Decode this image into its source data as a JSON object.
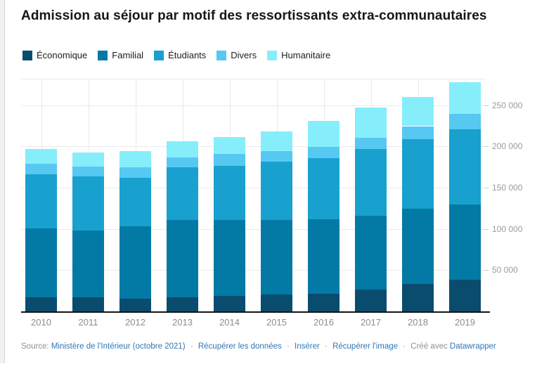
{
  "title": "Admission au séjour par motif des ressortissants extra-communautaires",
  "colors": {
    "economique": "#0a4c6d",
    "familial": "#0379a5",
    "etudiants": "#18a1ce",
    "divers": "#56c8f2",
    "humanitaire": "#86eefb",
    "grid": "#e9e9e9",
    "axis": "#141414",
    "tick_text": "#9b9b9b",
    "year_text": "#8d8d8d",
    "link": "#3077b5"
  },
  "chart_data": {
    "type": "bar",
    "stacked": true,
    "title": "Admission au séjour par motif des ressortissants extra-communautaires",
    "categories": [
      "2010",
      "2011",
      "2012",
      "2013",
      "2014",
      "2015",
      "2016",
      "2017",
      "2018",
      "2019"
    ],
    "series": [
      {
        "name": "Économique",
        "color": "#0a4c6d",
        "values": [
          17000,
          17000,
          15000,
          17000,
          19000,
          20500,
          21000,
          26500,
          33000,
          38500
        ]
      },
      {
        "name": "Familial",
        "color": "#0379a5",
        "values": [
          83500,
          81000,
          88000,
          94000,
          92000,
          90000,
          91000,
          89000,
          91500,
          91000
        ]
      },
      {
        "name": "Étudiants",
        "color": "#18a1ce",
        "values": [
          65500,
          65500,
          58500,
          63500,
          65500,
          71000,
          73500,
          81000,
          84000,
          91000
        ]
      },
      {
        "name": "Divers",
        "color": "#56c8f2",
        "values": [
          12500,
          12000,
          13000,
          12500,
          14000,
          12500,
          14000,
          14000,
          16000,
          19000
        ]
      },
      {
        "name": "Humanitaire",
        "color": "#86eefb",
        "values": [
          18500,
          17000,
          19500,
          19000,
          21000,
          24500,
          31000,
          36500,
          35000,
          38500
        ]
      }
    ],
    "yticks": [
      {
        "value": 50000,
        "label": "50 000"
      },
      {
        "value": 100000,
        "label": "100 000"
      },
      {
        "value": 150000,
        "label": "150 000"
      },
      {
        "value": 200000,
        "label": "200 000"
      },
      {
        "value": 250000,
        "label": "250 000"
      }
    ],
    "ylim": [
      0,
      282000
    ],
    "xlabel": "",
    "ylabel": "",
    "grid": true,
    "legend_position": "top"
  },
  "footer": {
    "source_label": "Source:",
    "source_link": "Ministère de l'Intérieur (octobre 2021)",
    "link_data": "Récupérer les données",
    "link_embed": "Insérer",
    "link_image": "Récupérer l'image",
    "created_label": "Créé avec",
    "created_link": "Datawrapper",
    "separator": "·"
  }
}
